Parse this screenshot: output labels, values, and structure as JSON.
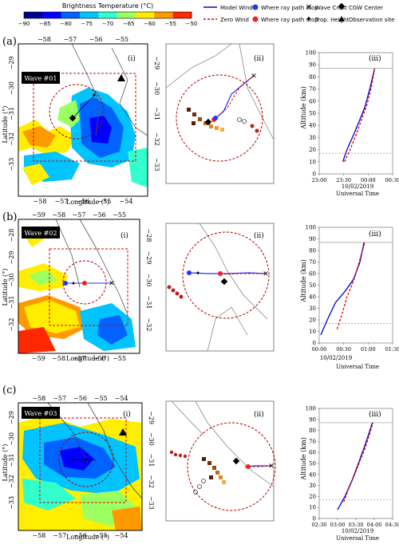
{
  "colorbar": {
    "title": "Brightness Temperature (°C)",
    "ticks": [
      "−90",
      "−85",
      "−80",
      "−75",
      "−70",
      "−65",
      "−60",
      "−55",
      "−50"
    ],
    "colors": [
      "#000090",
      "#0000ff",
      "#0063ff",
      "#00c3ff",
      "#33ffcc",
      "#9cff62",
      "#ffee00",
      "#ff9900",
      "#ff2800"
    ]
  },
  "legend": {
    "model_wind": "Model Wind",
    "zero_wind": "Zero Wind",
    "ray_stop_blue": "Where ray path stop",
    "ray_stop_red": "Where ray path stop",
    "wave_crest": "Wave Crest",
    "trop_height": "Trop. Height",
    "cgw_center": "CGW Center",
    "obs_site": "Observation site"
  },
  "panels": [
    {
      "letter": "(a)",
      "wave_label": "Wave #01",
      "map_tag": "(i)",
      "mid_tag": "(ii)",
      "right_tag": "(iii)",
      "lon_top": [
        "−58",
        "−57",
        "−56",
        "−55"
      ],
      "lon_bottom": [
        "−58",
        "−57",
        "−56",
        "−55",
        "−54"
      ],
      "lat_left": [
        "−29",
        "−30",
        "−31",
        "−32",
        "−33"
      ],
      "lat_right": [
        "−29",
        "−30",
        "−31",
        "−32",
        "−33"
      ],
      "xlabel": "Longitude (°)",
      "ylabel": "Latitude (°)",
      "alt_label": "Altitude (km)",
      "time_ticks": [
        "23:00",
        "23:30",
        "00:00",
        "00:30"
      ],
      "date": "10/02/2019",
      "time_label": "Universal Time"
    },
    {
      "letter": "(b)",
      "wave_label": "Wave #02",
      "map_tag": "(i)",
      "mid_tag": "(ii)",
      "right_tag": "(iii)",
      "lon_top": [
        "−59",
        "−58",
        "−57",
        "−56",
        "−55"
      ],
      "lon_bottom": [
        "−59",
        "−58",
        "−57",
        "−56",
        "−55"
      ],
      "lat_left": [
        "−28",
        "−29",
        "−30",
        "−31",
        "−32"
      ],
      "lat_right": [
        "−28",
        "−29",
        "−30",
        "−31",
        "−32"
      ],
      "xlabel": "Longitude (°)",
      "ylabel": "Latitude (°)",
      "alt_label": "Altitude (km)",
      "time_ticks": [
        "00:00",
        "00:30",
        "01:00",
        "01:30"
      ],
      "date": "10/02/2019",
      "time_label": "Universal Time"
    },
    {
      "letter": "(c)",
      "wave_label": "Wave #03",
      "map_tag": "(i)",
      "mid_tag": "(ii)",
      "right_tag": "(iii)",
      "lon_top": [
        "−58",
        "−57",
        "−56",
        "−55",
        "−54"
      ],
      "lon_bottom": [
        "−58",
        "−57",
        "−56",
        "−55",
        "−54"
      ],
      "lat_left": [
        "−29",
        "−30",
        "−31",
        "−32",
        "−33"
      ],
      "lat_right": [
        "−29",
        "−30",
        "−31",
        "−32",
        "−33"
      ],
      "xlabel": "Longitude (°)",
      "ylabel": "Latitude (°)",
      "alt_label": "Altitude (km)",
      "time_ticks": [
        "02:30",
        "03:00",
        "03:30",
        "04:00",
        "04:30"
      ],
      "date": "10/02/2019",
      "time_label": "Universal Time"
    }
  ],
  "chart_data": [
    {
      "type": "line",
      "title": "(iii)",
      "xlabel": "Universal Time",
      "ylabel": "Altitude (km)",
      "x_ticks": [
        "23:00",
        "23:30",
        "00:00",
        "00:30"
      ],
      "ylim": [
        0,
        100
      ],
      "y_ticks": [
        0,
        10,
        20,
        30,
        40,
        50,
        60,
        70,
        80,
        90,
        100
      ],
      "series": [
        {
          "name": "Model Wind",
          "x": [
            "23:29",
            "23:34",
            "23:42",
            "23:50",
            "23:56",
            "00:02",
            "00:08"
          ],
          "y": [
            10,
            20,
            32,
            45,
            55,
            70,
            87
          ]
        },
        {
          "name": "Zero Wind",
          "x": [
            "23:31",
            "23:38",
            "23:45",
            "23:52",
            "23:59",
            "00:04",
            "00:08"
          ],
          "y": [
            10,
            20,
            32,
            45,
            58,
            72,
            87
          ]
        }
      ],
      "reference_lines": [
        17,
        87
      ]
    },
    {
      "type": "line",
      "title": "(iii)",
      "xlabel": "Universal Time",
      "ylabel": "Altitude (km)",
      "x_ticks": [
        "00:00",
        "00:30",
        "01:00",
        "01:30"
      ],
      "ylim": [
        0,
        100
      ],
      "y_ticks": [
        0,
        10,
        20,
        30,
        40,
        50,
        60,
        70,
        80,
        90,
        100
      ],
      "series": [
        {
          "name": "Model Wind",
          "x": [
            "00:02",
            "00:10",
            "00:20",
            "00:32",
            "00:42",
            "00:50",
            "00:55"
          ],
          "y": [
            7,
            20,
            35,
            45,
            55,
            70,
            87
          ]
        },
        {
          "name": "Zero Wind",
          "x": [
            "00:22",
            "00:28",
            "00:34",
            "00:40",
            "00:45",
            "00:51",
            "00:56"
          ],
          "y": [
            12,
            25,
            40,
            50,
            60,
            75,
            87
          ]
        }
      ],
      "reference_lines": [
        17,
        87
      ]
    },
    {
      "type": "line",
      "title": "(iii)",
      "xlabel": "Universal Time",
      "ylabel": "Altitude (km)",
      "x_ticks": [
        "02:30",
        "03:00",
        "03:30",
        "04:00",
        "04:30"
      ],
      "ylim": [
        0,
        100
      ],
      "y_ticks": [
        0,
        10,
        20,
        30,
        40,
        50,
        60,
        70,
        80,
        90,
        100
      ],
      "series": [
        {
          "name": "Model Wind",
          "x": [
            "03:00",
            "03:12",
            "03:24",
            "03:34",
            "03:42",
            "03:50",
            "03:57"
          ],
          "y": [
            8,
            20,
            35,
            50,
            62,
            75,
            87
          ]
        },
        {
          "name": "Zero Wind",
          "x": [
            "03:10",
            "03:18",
            "03:28",
            "03:37",
            "03:45",
            "03:52",
            "03:58"
          ],
          "y": [
            15,
            27,
            40,
            53,
            64,
            76,
            87
          ]
        }
      ],
      "reference_lines": [
        17,
        87
      ]
    }
  ]
}
